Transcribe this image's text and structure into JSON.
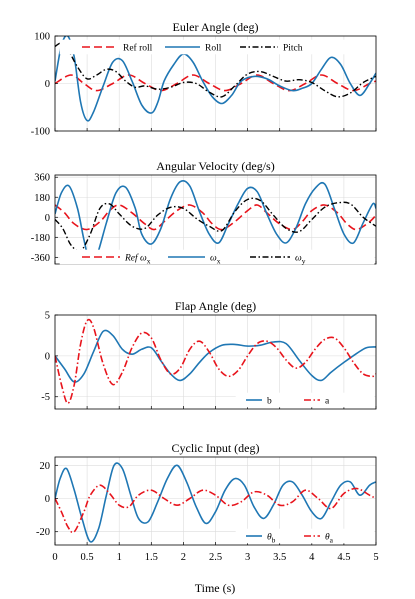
{
  "colors": {
    "red": "#e8141c",
    "blue": "#1f77b4",
    "black": "#000000"
  },
  "shared_x": {
    "label": "Time (s)",
    "ticks": [
      0,
      0.5,
      1,
      1.5,
      2,
      2.5,
      3,
      3.5,
      4,
      4.5,
      5
    ],
    "tick_labels": [
      "0",
      "0.5",
      "1",
      "1.5",
      "2",
      "2.5",
      "3",
      "3.5",
      "4",
      "4.5",
      "5"
    ],
    "xlim": [
      0,
      5
    ]
  },
  "chart_data": [
    {
      "type": "line",
      "title": "Euler Angle (deg)",
      "xlim": [
        0,
        5
      ],
      "ylim": [
        -100,
        100
      ],
      "yticks": [
        -100,
        0,
        100
      ],
      "ytick_labels": [
        "-100",
        "0",
        "100"
      ],
      "grid": true,
      "legend": {
        "placement": "top",
        "items": [
          {
            "text": "Ref roll",
            "sub": ""
          },
          {
            "text": "Roll",
            "sub": ""
          },
          {
            "text": "Pitch",
            "sub": ""
          }
        ]
      },
      "series": [
        {
          "name": "Ref roll",
          "color": "red",
          "dash": "8,4",
          "width": 1.6,
          "x": [
            0,
            0.25,
            0.45,
            0.65,
            0.9,
            1.15,
            1.4,
            1.65,
            1.9,
            2.15,
            2.4,
            2.65,
            2.9,
            3.15,
            3.4,
            3.65,
            3.9,
            4.15,
            4.4,
            4.65,
            4.9,
            5.0
          ],
          "y": [
            0,
            18,
            0,
            -15,
            0,
            18,
            0,
            -15,
            0,
            18,
            0,
            -15,
            0,
            18,
            0,
            -15,
            0,
            18,
            0,
            -15,
            0,
            5
          ]
        },
        {
          "name": "Roll",
          "color": "blue",
          "dash": "",
          "width": 1.6,
          "x": [
            0,
            0.1,
            0.2,
            0.3,
            0.4,
            0.5,
            0.6,
            0.75,
            0.9,
            1.05,
            1.2,
            1.35,
            1.5,
            1.6,
            1.7,
            1.85,
            2.0,
            2.15,
            2.3,
            2.45,
            2.6,
            2.75,
            2.9,
            3.1,
            3.3,
            3.5,
            3.7,
            3.85,
            4.0,
            4.15,
            4.3,
            4.45,
            4.6,
            4.75,
            4.9,
            5.0
          ],
          "y": [
            5,
            80,
            100,
            55,
            -40,
            -78,
            -60,
            -5,
            45,
            48,
            5,
            -45,
            -62,
            -40,
            5,
            40,
            62,
            45,
            5,
            -28,
            -42,
            -25,
            5,
            15,
            10,
            -5,
            -15,
            -10,
            0,
            30,
            55,
            40,
            0,
            -25,
            0,
            22
          ]
        },
        {
          "name": "Pitch",
          "color": "black",
          "dash": "6,2.5,1.5,2.5",
          "width": 1.4,
          "x": [
            0,
            0.1,
            0.2,
            0.35,
            0.5,
            0.65,
            0.8,
            0.95,
            1.1,
            1.25,
            1.4,
            1.6,
            1.8,
            2.0,
            2.2,
            2.4,
            2.6,
            2.8,
            3.0,
            3.2,
            3.4,
            3.6,
            3.8,
            4.0,
            4.2,
            4.4,
            4.6,
            4.8,
            5.0
          ],
          "y": [
            78,
            85,
            72,
            35,
            10,
            18,
            30,
            25,
            5,
            -8,
            -5,
            -12,
            -8,
            2,
            0,
            -18,
            -28,
            -5,
            20,
            25,
            15,
            5,
            8,
            2,
            -15,
            -28,
            -20,
            2,
            15
          ]
        }
      ]
    },
    {
      "type": "line",
      "title": "Angular Velocity (deg/s)",
      "xlim": [
        0,
        5
      ],
      "ylim": [
        -420,
        380
      ],
      "yticks": [
        -360,
        -180,
        0,
        180,
        360
      ],
      "ytick_labels": [
        "-360",
        "-180",
        "0",
        "180",
        "360"
      ],
      "grid": true,
      "legend": {
        "placement": "bottom",
        "items": [
          {
            "text": "Ref ω",
            "sub": "x"
          },
          {
            "text": "ω",
            "sub": "x"
          },
          {
            "text": "ω",
            "sub": "y"
          }
        ]
      },
      "series": [
        {
          "name": "Ref ωx",
          "color": "red",
          "dash": "8,4",
          "width": 1.6,
          "x": [
            0,
            0.15,
            0.3,
            0.5,
            0.7,
            0.85,
            1.0,
            1.2,
            1.4,
            1.55,
            1.7,
            1.9,
            2.1,
            2.3,
            2.45,
            2.6,
            2.8,
            3.0,
            3.15,
            3.3,
            3.5,
            3.7,
            3.85,
            4.0,
            4.2,
            4.4,
            4.55,
            4.7,
            4.9,
            5.0
          ],
          "y": [
            110,
            40,
            -60,
            -110,
            -40,
            60,
            110,
            40,
            -60,
            -110,
            -40,
            60,
            110,
            40,
            -60,
            -110,
            -40,
            60,
            110,
            40,
            -60,
            -110,
            -40,
            60,
            110,
            40,
            -60,
            -110,
            -40,
            20
          ]
        },
        {
          "name": "ωx",
          "color": "blue",
          "dash": "",
          "width": 1.6,
          "x": [
            0,
            0.1,
            0.22,
            0.35,
            0.45,
            0.55,
            0.65,
            0.8,
            0.95,
            1.1,
            1.25,
            1.35,
            1.5,
            1.65,
            1.8,
            1.95,
            2.1,
            2.25,
            2.4,
            2.55,
            2.7,
            2.85,
            3.0,
            3.15,
            3.3,
            3.45,
            3.6,
            3.75,
            3.9,
            4.05,
            4.2,
            4.35,
            4.5,
            4.65,
            4.8,
            4.95,
            5.0
          ],
          "y": [
            30,
            220,
            280,
            80,
            -200,
            -420,
            -350,
            -50,
            220,
            270,
            80,
            -150,
            -240,
            -100,
            170,
            320,
            280,
            50,
            -150,
            -230,
            -60,
            120,
            260,
            230,
            30,
            -150,
            -230,
            -100,
            120,
            260,
            300,
            80,
            -150,
            -230,
            -50,
            120,
            80
          ]
        },
        {
          "name": "ωy",
          "color": "black",
          "dash": "6,2.5,1.5,2.5",
          "width": 1.4,
          "x": [
            0,
            0.12,
            0.25,
            0.4,
            0.55,
            0.7,
            0.85,
            1.0,
            1.2,
            1.4,
            1.6,
            1.8,
            2.0,
            2.2,
            2.4,
            2.6,
            2.8,
            3.0,
            3.2,
            3.4,
            3.6,
            3.8,
            4.0,
            4.2,
            4.4,
            4.6,
            4.8,
            5.0
          ],
          "y": [
            -20,
            -100,
            -250,
            -300,
            -150,
            80,
            120,
            30,
            -80,
            -100,
            20,
            90,
            80,
            -10,
            -80,
            -120,
            50,
            160,
            150,
            20,
            -100,
            -130,
            -20,
            90,
            130,
            120,
            0,
            -80
          ]
        }
      ]
    },
    {
      "type": "line",
      "title": "Flap Angle (deg)",
      "xlim": [
        0,
        5
      ],
      "ylim": [
        -6.5,
        5
      ],
      "yticks": [
        -5,
        0,
        5
      ],
      "ytick_labels": [
        "-5",
        "0",
        "5"
      ],
      "grid": true,
      "legend": {
        "placement": "bottom-right",
        "items": [
          {
            "text": "b",
            "sub": ""
          },
          {
            "text": "a",
            "sub": ""
          }
        ]
      },
      "series": [
        {
          "name": "b",
          "color": "blue",
          "dash": "",
          "width": 1.6,
          "x": [
            0,
            0.15,
            0.3,
            0.45,
            0.6,
            0.75,
            0.9,
            1.05,
            1.2,
            1.35,
            1.5,
            1.65,
            1.8,
            1.95,
            2.1,
            2.25,
            2.4,
            2.6,
            2.8,
            3.0,
            3.2,
            3.4,
            3.6,
            3.8,
            4.0,
            4.15,
            4.3,
            4.5,
            4.7,
            4.85,
            5.0
          ],
          "y": [
            0,
            -1.6,
            -3.2,
            -2.2,
            0.5,
            3.0,
            2.5,
            0.8,
            0.2,
            0.8,
            1.0,
            -0.6,
            -2.2,
            -3.0,
            -2.2,
            -0.8,
            0.4,
            1.3,
            1.4,
            1.2,
            1.3,
            1.7,
            1.5,
            -0.5,
            -2.4,
            -3.0,
            -2.0,
            -0.8,
            0.3,
            1.0,
            1.1
          ]
        },
        {
          "name": "a",
          "color": "red",
          "dash": "7,2.5,1.5,2.5",
          "width": 1.6,
          "x": [
            0,
            0.1,
            0.2,
            0.3,
            0.4,
            0.5,
            0.6,
            0.75,
            0.9,
            1.05,
            1.2,
            1.35,
            1.5,
            1.65,
            1.8,
            1.95,
            2.1,
            2.25,
            2.4,
            2.55,
            2.7,
            2.85,
            3.0,
            3.15,
            3.3,
            3.45,
            3.6,
            3.75,
            3.9,
            4.05,
            4.2,
            4.35,
            4.5,
            4.65,
            4.8,
            4.95,
            5.0
          ],
          "y": [
            0,
            -3.5,
            -5.8,
            -3.5,
            1.5,
            4.3,
            3.5,
            -1.0,
            -3.5,
            -2.0,
            1.0,
            2.8,
            2.2,
            -0.5,
            -2.2,
            -1.5,
            0.8,
            1.8,
            0.5,
            -1.6,
            -2.5,
            -1.8,
            0,
            1.5,
            1.8,
            1.0,
            -0.5,
            -1.5,
            -0.8,
            0.8,
            2.0,
            2.2,
            1.0,
            -0.8,
            -2.2,
            -2.5,
            -2.2
          ]
        }
      ]
    },
    {
      "type": "line",
      "title": "Cyclic Input (deg)",
      "xlim": [
        0,
        5
      ],
      "ylim": [
        -28,
        25
      ],
      "yticks": [
        -20,
        0,
        20
      ],
      "ytick_labels": [
        "-20",
        "0",
        "20"
      ],
      "grid": true,
      "legend": {
        "placement": "bottom-right",
        "items": [
          {
            "text": "θ",
            "sub": "b"
          },
          {
            "text": "θ",
            "sub": "a"
          }
        ]
      },
      "series": [
        {
          "name": "θb",
          "color": "blue",
          "dash": "",
          "width": 1.6,
          "x": [
            0,
            0.08,
            0.18,
            0.3,
            0.42,
            0.55,
            0.68,
            0.8,
            0.92,
            1.05,
            1.18,
            1.3,
            1.45,
            1.6,
            1.75,
            1.9,
            2.05,
            2.2,
            2.35,
            2.5,
            2.65,
            2.8,
            2.95,
            3.1,
            3.25,
            3.4,
            3.55,
            3.7,
            3.85,
            4.0,
            4.15,
            4.3,
            4.45,
            4.6,
            4.75,
            4.9,
            5.0
          ],
          "y": [
            0,
            12,
            18,
            5,
            -12,
            -26,
            -18,
            2,
            20,
            18,
            2,
            -12,
            -14,
            -2,
            12,
            20,
            10,
            -5,
            -15,
            -8,
            5,
            12,
            8,
            -5,
            -12,
            -4,
            8,
            10,
            2,
            -8,
            -12,
            -2,
            8,
            10,
            2,
            8,
            10
          ]
        },
        {
          "name": "θa",
          "color": "red",
          "dash": "7,2.5,1.5,2.5",
          "width": 1.6,
          "x": [
            0,
            0.1,
            0.2,
            0.3,
            0.45,
            0.55,
            0.7,
            0.85,
            1.0,
            1.15,
            1.3,
            1.5,
            1.7,
            1.9,
            2.1,
            2.3,
            2.5,
            2.7,
            2.9,
            3.1,
            3.3,
            3.5,
            3.7,
            3.9,
            4.1,
            4.3,
            4.5,
            4.7,
            4.9,
            5.0
          ],
          "y": [
            0,
            -8,
            -17,
            -20,
            -8,
            2,
            8,
            3,
            -4,
            -5,
            2,
            5,
            0,
            -4,
            0,
            5,
            2,
            -4,
            -2,
            4,
            2,
            -4,
            -2,
            5,
            0,
            -6,
            3,
            6,
            2,
            0
          ]
        }
      ]
    }
  ]
}
